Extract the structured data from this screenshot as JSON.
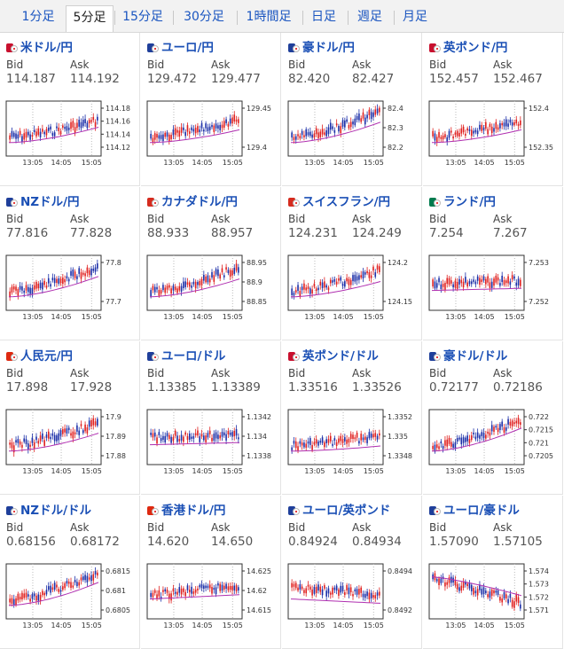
{
  "tabs": [
    "1分足",
    "5分足",
    "15分足",
    "30分足",
    "1時間足",
    "日足",
    "週足",
    "月足"
  ],
  "active_tab": "5分足",
  "labels": {
    "bid": "Bid",
    "ask": "Ask"
  },
  "colors": {
    "up": "#e0201f",
    "down": "#1c2fa8",
    "ma": "#b02fb0",
    "link": "#1a4fb5"
  },
  "x_ticks": [
    "13:05",
    "14:05",
    "15:05"
  ],
  "pairs": [
    {
      "name": "米ドル/円",
      "bid": "114.187",
      "ask": "114.192",
      "flag": "#c8102e",
      "yticks": [
        "114.18",
        "114.16",
        "114.14",
        "114.12"
      ],
      "trend": 0.55,
      "ma": 0.3
    },
    {
      "name": "ユーロ/円",
      "bid": "129.472",
      "ask": "129.477",
      "flag": "#1f3f9a",
      "yticks": [
        "129.45",
        "129.4"
      ],
      "trend": 0.6,
      "ma": 0.25
    },
    {
      "name": "豪ドル/円",
      "bid": "82.420",
      "ask": "82.427",
      "flag": "#1f3f9a",
      "yticks": [
        "82.4",
        "82.3",
        "82.2"
      ],
      "trend": 0.85,
      "ma": 0.4
    },
    {
      "name": "英ポンド/円",
      "bid": "152.457",
      "ask": "152.467",
      "flag": "#c8102e",
      "yticks": [
        "152.4",
        "152.35"
      ],
      "trend": 0.55,
      "ma": 0.25
    },
    {
      "name": "NZドル/円",
      "bid": "77.816",
      "ask": "77.828",
      "flag": "#1f3f9a",
      "yticks": [
        "77.8",
        "77.7"
      ],
      "trend": 0.8,
      "ma": 0.4
    },
    {
      "name": "カナダドル/円",
      "bid": "88.933",
      "ask": "88.957",
      "flag": "#d52b1e",
      "yticks": [
        "88.95",
        "88.9",
        "88.85"
      ],
      "trend": 0.8,
      "ma": 0.35
    },
    {
      "name": "スイスフラン/円",
      "bid": "124.231",
      "ask": "124.249",
      "flag": "#d52b1e",
      "yticks": [
        "124.2",
        "124.15"
      ],
      "trend": 0.7,
      "ma": 0.3
    },
    {
      "name": "ランド/円",
      "bid": "7.254",
      "ask": "7.267",
      "flag": "#007a4d",
      "yticks": [
        "7.253",
        "7.252"
      ],
      "trend": 0.1,
      "ma": 0.05
    },
    {
      "name": "人民元/円",
      "bid": "17.898",
      "ask": "17.928",
      "flag": "#de2910",
      "yticks": [
        "17.9",
        "17.89",
        "17.88"
      ],
      "trend": 0.75,
      "ma": 0.35
    },
    {
      "name": "ユーロ/ドル",
      "bid": "1.13385",
      "ask": "1.13389",
      "flag": "#1f3f9a",
      "yticks": [
        "1.1342",
        "1.134",
        "1.1338"
      ],
      "trend": 0.05,
      "ma": 0.05
    },
    {
      "name": "英ポンド/ドル",
      "bid": "1.33516",
      "ask": "1.33526",
      "flag": "#c8102e",
      "yticks": [
        "1.3352",
        "1.335",
        "1.3348"
      ],
      "trend": 0.35,
      "ma": 0.1
    },
    {
      "name": "豪ドル/ドル",
      "bid": "0.72177",
      "ask": "0.72186",
      "flag": "#1f3f9a",
      "yticks": [
        "0.722",
        "0.7215",
        "0.721",
        "0.7205"
      ],
      "trend": 0.85,
      "ma": 0.45
    },
    {
      "name": "NZドル/ドル",
      "bid": "0.68156",
      "ask": "0.68172",
      "flag": "#1f3f9a",
      "yticks": [
        "0.6815",
        "0.681",
        "0.6805"
      ],
      "trend": 0.85,
      "ma": 0.45
    },
    {
      "name": "香港ドル/円",
      "bid": "14.620",
      "ask": "14.650",
      "flag": "#de2910",
      "yticks": [
        "14.625",
        "14.62",
        "14.615"
      ],
      "trend": 0.3,
      "ma": 0.1
    },
    {
      "name": "ユーロ/英ポンド",
      "bid": "0.84924",
      "ask": "0.84934",
      "flag": "#1f3f9a",
      "yticks": [
        "0.8494",
        "0.8492"
      ],
      "trend": -0.2,
      "ma": -0.1
    },
    {
      "name": "ユーロ/豪ドル",
      "bid": "1.57090",
      "ask": "1.57105",
      "flag": "#1f3f9a",
      "yticks": [
        "1.574",
        "1.573",
        "1.572",
        "1.571"
      ],
      "trend": -0.9,
      "ma": -0.4
    }
  ]
}
